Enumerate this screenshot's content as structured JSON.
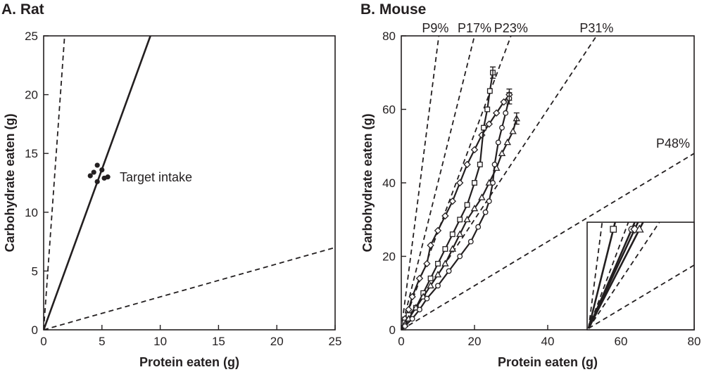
{
  "chart_data": [
    {
      "type": "scatter",
      "title": "A. Rat",
      "xlabel": "Protein eaten (g)",
      "ylabel": "Carbohydrate eaten (g)",
      "xlim": [
        0,
        25
      ],
      "ylim": [
        0,
        25
      ],
      "xticks": [
        "0",
        "5",
        "10",
        "15",
        "20",
        "25"
      ],
      "yticks": [
        "0",
        "5",
        "10",
        "15",
        "20",
        "25"
      ],
      "rails": [
        {
          "name": "steep-dashed-rail",
          "style": "dashed",
          "slope": 13.9
        },
        {
          "name": "intake-solid-rail",
          "style": "solid",
          "slope": 2.73
        },
        {
          "name": "shallow-dashed-rail",
          "style": "dashed",
          "slope": 0.28
        }
      ],
      "points": [
        {
          "x": 4.0,
          "y": 13.1
        },
        {
          "x": 4.3,
          "y": 13.4
        },
        {
          "x": 4.6,
          "y": 14.0
        },
        {
          "x": 4.6,
          "y": 12.6
        },
        {
          "x": 5.0,
          "y": 13.6
        },
        {
          "x": 5.2,
          "y": 12.9
        },
        {
          "x": 5.5,
          "y": 13.0
        }
      ],
      "annotation": "Target intake"
    },
    {
      "type": "line",
      "title": "B. Mouse",
      "xlabel": "Protein eaten (g)",
      "ylabel": "Carbohydrate eaten (g)",
      "xlim": [
        0,
        80
      ],
      "ylim": [
        0,
        80
      ],
      "xticks": [
        "0",
        "20",
        "40",
        "60",
        "80"
      ],
      "yticks": [
        "0",
        "20",
        "40",
        "60",
        "80"
      ],
      "rails": [
        {
          "label": "P9%",
          "slope": 7.8
        },
        {
          "label": "P17%",
          "slope": 4.0
        },
        {
          "label": "P23%",
          "slope": 2.67
        },
        {
          "label": "P31%",
          "slope": 1.5
        },
        {
          "label": "P48%",
          "slope": 0.6
        }
      ],
      "series": [
        {
          "name": "diamond",
          "marker": "diamond",
          "x": [
            1,
            2,
            3,
            5,
            7,
            8,
            10,
            12,
            14,
            16,
            18,
            20,
            22,
            24,
            26,
            28,
            29.5
          ],
          "y": [
            3,
            5.5,
            9,
            14,
            18,
            23,
            27,
            31,
            35,
            40,
            45,
            49,
            53,
            56,
            59,
            62,
            64
          ]
        },
        {
          "name": "square",
          "marker": "square",
          "x": [
            1,
            2,
            4,
            6,
            8,
            10,
            12,
            14,
            16,
            18,
            20,
            21.5,
            22.5,
            23.5,
            24.2,
            25
          ],
          "y": [
            2,
            4,
            6,
            10,
            14,
            18,
            22,
            26,
            30,
            34,
            40,
            45,
            55,
            60,
            65,
            70
          ]
        },
        {
          "name": "triangle",
          "marker": "triangle",
          "x": [
            1,
            2,
            4,
            6,
            8,
            10,
            12,
            14,
            16,
            18,
            20,
            22,
            24,
            26,
            27.5,
            29,
            30.5,
            31.5
          ],
          "y": [
            1.5,
            3,
            6,
            9,
            12,
            15,
            18,
            22,
            26,
            30,
            33,
            36,
            40,
            44,
            48,
            51,
            54,
            57.5
          ]
        },
        {
          "name": "circle",
          "marker": "circle",
          "x": [
            1,
            3,
            5,
            7,
            10,
            13,
            16,
            19,
            21,
            23,
            24,
            25,
            25.5,
            26.5,
            27.5,
            28.5,
            29.5
          ],
          "y": [
            1,
            3,
            5.5,
            8.5,
            12,
            16,
            20,
            24,
            28,
            32,
            35,
            40,
            45,
            51,
            55,
            59,
            63
          ]
        }
      ],
      "inset": {
        "lines": [
          {
            "style": "dashed",
            "slope": 7.8
          },
          {
            "style": "dashed",
            "slope": 4.0
          },
          {
            "style": "dashed",
            "slope": 2.67
          },
          {
            "style": "dashed",
            "slope": 1.5
          },
          {
            "style": "dashed",
            "slope": 0.6
          },
          {
            "style": "solid",
            "slope": 4.0,
            "marker": "square"
          },
          {
            "style": "solid",
            "slope": 2.3,
            "marker": "circle"
          },
          {
            "style": "solid",
            "slope": 2.15,
            "marker": "diamond"
          },
          {
            "style": "solid",
            "slope": 1.95,
            "marker": "triangle"
          }
        ]
      }
    }
  ]
}
